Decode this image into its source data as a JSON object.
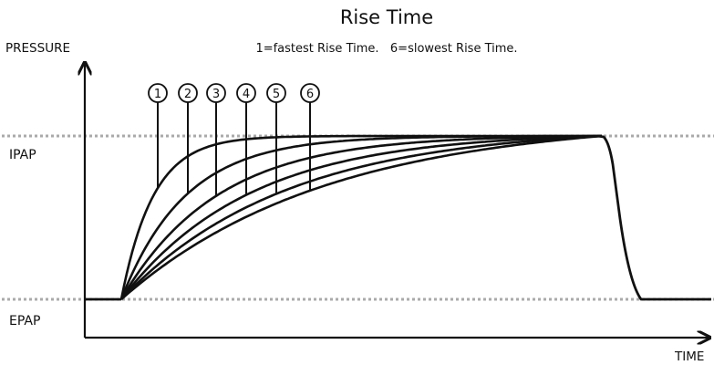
{
  "title": "Rise Time",
  "subtitle": "1=fastest Rise Time.   6=slowest Rise Time.",
  "y_axis_label": "PRESSURE",
  "x_axis_label": "TIME",
  "levels": {
    "high": "IPAP",
    "low": "EPAP"
  },
  "curve_markers": [
    "1",
    "2",
    "3",
    "4",
    "5",
    "6"
  ],
  "colors": {
    "line": "#111111",
    "reference": "#aaaaaa"
  }
}
